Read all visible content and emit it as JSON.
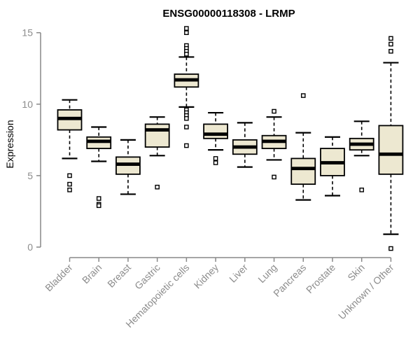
{
  "chart_data": {
    "type": "boxplot",
    "title": "ENSG00000118308 - LRMP",
    "ylabel": "Expression",
    "xlabel": "",
    "ylim": [
      0,
      15
    ],
    "yticks": [
      0,
      5,
      10,
      15
    ],
    "grid": false,
    "legend": "none",
    "categories": [
      "Bladder",
      "Brain",
      "Breast",
      "Gastric",
      "Hematopoietic cells",
      "Kidney",
      "Liver",
      "Lung",
      "Pancreas",
      "Prostate",
      "Skin",
      "Unknown / Other"
    ],
    "boxes": [
      {
        "category": "Bladder",
        "whisker_low": 6.2,
        "q1": 8.2,
        "median": 9.0,
        "q3": 9.6,
        "whisker_high": 10.3,
        "outliers": [
          5.0,
          4.4,
          4.0
        ]
      },
      {
        "category": "Brain",
        "whisker_low": 6.0,
        "q1": 6.9,
        "median": 7.4,
        "q3": 7.7,
        "whisker_high": 8.4,
        "outliers": [
          3.4,
          3.0,
          2.9
        ]
      },
      {
        "category": "Breast",
        "whisker_low": 3.7,
        "q1": 5.1,
        "median": 5.8,
        "q3": 6.3,
        "whisker_high": 7.5,
        "outliers": []
      },
      {
        "category": "Gastric",
        "whisker_low": 6.4,
        "q1": 7.0,
        "median": 8.2,
        "q3": 8.6,
        "whisker_high": 9.1,
        "outliers": [
          4.2
        ]
      },
      {
        "category": "Hematopoietic cells",
        "whisker_low": 9.8,
        "q1": 11.2,
        "median": 11.7,
        "q3": 12.1,
        "whisker_high": 13.3,
        "outliers": [
          15.3,
          15.0,
          14.1,
          13.9,
          13.7,
          13.5,
          9.6,
          9.4,
          9.2,
          9.0,
          8.4,
          7.1
        ]
      },
      {
        "category": "Kidney",
        "whisker_low": 6.8,
        "q1": 7.6,
        "median": 7.9,
        "q3": 8.6,
        "whisker_high": 9.4,
        "outliers": [
          6.2,
          5.9
        ]
      },
      {
        "category": "Liver",
        "whisker_low": 5.6,
        "q1": 6.5,
        "median": 7.0,
        "q3": 7.5,
        "whisker_high": 8.7,
        "outliers": []
      },
      {
        "category": "Lung",
        "whisker_low": 6.1,
        "q1": 6.9,
        "median": 7.4,
        "q3": 7.8,
        "whisker_high": 9.1,
        "outliers": [
          9.5,
          4.9
        ]
      },
      {
        "category": "Pancreas",
        "whisker_low": 3.3,
        "q1": 4.4,
        "median": 5.5,
        "q3": 6.2,
        "whisker_high": 8.0,
        "outliers": [
          10.6
        ]
      },
      {
        "category": "Prostate",
        "whisker_low": 3.6,
        "q1": 5.0,
        "median": 5.9,
        "q3": 6.9,
        "whisker_high": 7.7,
        "outliers": []
      },
      {
        "category": "Skin",
        "whisker_low": 6.4,
        "q1": 6.8,
        "median": 7.2,
        "q3": 7.6,
        "whisker_high": 8.8,
        "outliers": [
          4.0
        ]
      },
      {
        "category": "Unknown / Other",
        "whisker_low": 0.9,
        "q1": 5.1,
        "median": 6.5,
        "q3": 8.5,
        "whisker_high": 12.9,
        "outliers": [
          14.6,
          14.2,
          13.7,
          -0.1
        ]
      }
    ],
    "colors": {
      "box_fill": "#EDE8D1",
      "box_border": "#000000",
      "median": "#000000",
      "whisker": "#000000",
      "outlier_border": "#000000",
      "outlier_fill": "#FFFFFF",
      "axis": "#898989",
      "tick_label": "#8C8C8C",
      "title": "#000000",
      "background": "#FFFFFF"
    }
  }
}
